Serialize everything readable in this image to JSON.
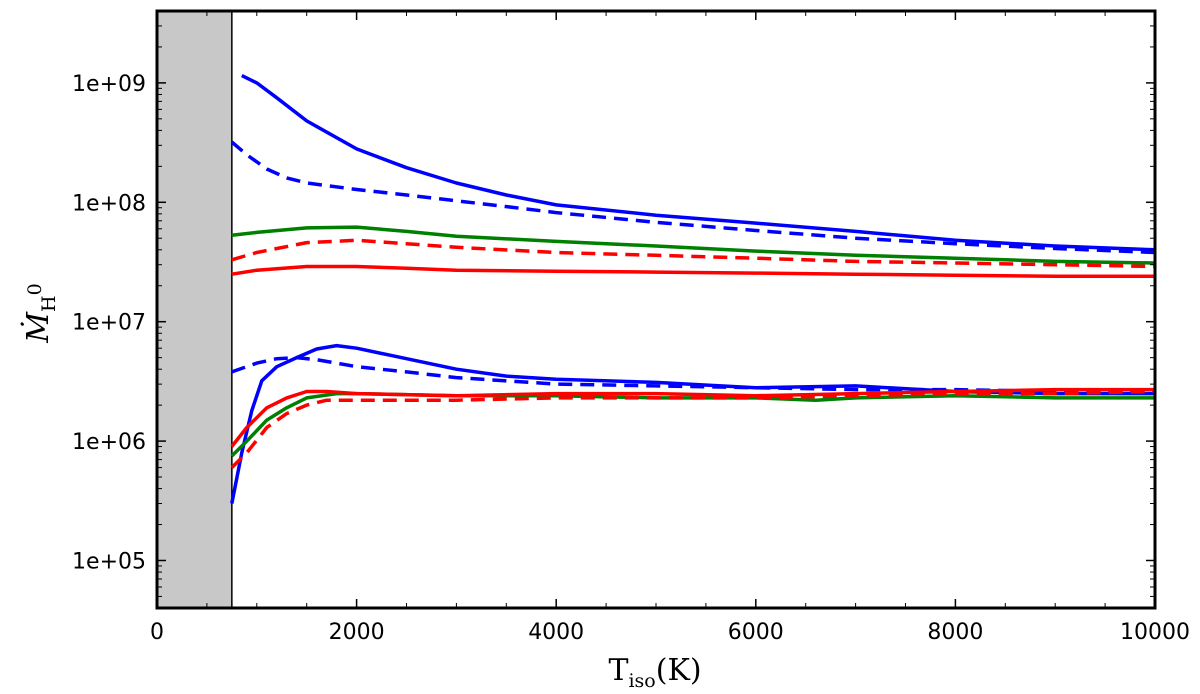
{
  "chart_data": {
    "type": "line",
    "title": "",
    "xlabel": {
      "main": "T",
      "sub": "iso",
      "unit": "(K)"
    },
    "ylabel": {
      "main": "Ṁ",
      "sub": "H",
      "sup": "0"
    },
    "xlim": [
      0,
      10000
    ],
    "ylim": [
      40000,
      4000000000
    ],
    "yscale": "log",
    "grid": false,
    "legend": "none",
    "xticks": [
      0,
      2000,
      4000,
      6000,
      8000,
      10000
    ],
    "xtick_labels": [
      "0",
      "2000",
      "4000",
      "6000",
      "8000",
      "10000"
    ],
    "yticks": [
      100000,
      1000000,
      10000000,
      100000000,
      1000000000
    ],
    "ytick_labels": [
      "1e+05",
      "1e+06",
      "1e+07",
      "1e+08",
      "1e+09"
    ],
    "shaded_region": {
      "x": [
        0,
        750
      ],
      "color": "#c8c8c8"
    },
    "series": [
      {
        "color": "#0000ff",
        "style": "solid",
        "x": [
          850,
          1000,
          1200,
          1500,
          2000,
          2500,
          3000,
          3500,
          4000,
          5000,
          6000,
          7000,
          8000,
          9000,
          10000
        ],
        "y": [
          1150000000,
          1000000000,
          750000000,
          480000000,
          280000000,
          195000000,
          145000000,
          115000000,
          95000000,
          78000000,
          67000000,
          57000000,
          48000000,
          43000000,
          40000000
        ]
      },
      {
        "color": "#0000ff",
        "style": "dashed",
        "x": [
          750,
          900,
          1100,
          1300,
          1500,
          2000,
          2500,
          3000,
          3500,
          4000,
          5000,
          6000,
          7000,
          8000,
          9000,
          10000
        ],
        "y": [
          320000000,
          250000000,
          190000000,
          160000000,
          145000000,
          128000000,
          115000000,
          103000000,
          92000000,
          82000000,
          68000000,
          58000000,
          50000000,
          45000000,
          41000000,
          38000000
        ]
      },
      {
        "color": "#008000",
        "style": "solid",
        "x": [
          750,
          1000,
          1500,
          2000,
          2500,
          3000,
          4000,
          5000,
          6000,
          7000,
          8000,
          9000,
          10000
        ],
        "y": [
          53000000,
          56000000,
          61000000,
          62000000,
          57000000,
          52000000,
          47000000,
          43000000,
          39000000,
          36000000,
          34000000,
          32000000,
          31000000
        ]
      },
      {
        "color": "#ff0000",
        "style": "dashed",
        "x": [
          750,
          1000,
          1500,
          2000,
          2500,
          3000,
          4000,
          5000,
          6000,
          7000,
          8000,
          9000,
          10000
        ],
        "y": [
          33000000,
          38000000,
          46000000,
          48000000,
          45000000,
          42000000,
          38000000,
          36000000,
          34000000,
          32000000,
          31000000,
          30000000,
          29000000
        ]
      },
      {
        "color": "#ff0000",
        "style": "solid",
        "x": [
          750,
          1000,
          1500,
          2000,
          2500,
          3000,
          4000,
          5000,
          6000,
          7000,
          8000,
          9000,
          10000
        ],
        "y": [
          25000000,
          27000000,
          29000000,
          29000000,
          28000000,
          27000000,
          26500000,
          26000000,
          25500000,
          25000000,
          24500000,
          24000000,
          24000000
        ]
      },
      {
        "color": "#0000ff",
        "style": "solid",
        "x": [
          750,
          850,
          950,
          1050,
          1200,
          1400,
          1600,
          1800,
          2000,
          2400,
          3000,
          3500,
          4000,
          5000,
          6000,
          7000,
          8000,
          9000,
          10000
        ],
        "y": [
          300000,
          800000,
          1800000,
          3200000,
          4200000,
          5000000,
          5900000,
          6300000,
          6000000,
          5100000,
          4000000,
          3500000,
          3300000,
          3100000,
          2800000,
          2900000,
          2600000,
          2500000,
          2500000
        ]
      },
      {
        "color": "#0000ff",
        "style": "dashed",
        "x": [
          750,
          1000,
          1200,
          1400,
          1600,
          1800,
          2000,
          2500,
          3000,
          4000,
          5000,
          6000,
          7000,
          8000,
          9000,
          10000
        ],
        "y": [
          3800000,
          4500000,
          4900000,
          5000000,
          4800000,
          4500000,
          4200000,
          3800000,
          3400000,
          3000000,
          2900000,
          2800000,
          2700000,
          2700000,
          2600000,
          2600000
        ]
      },
      {
        "color": "#008000",
        "style": "solid",
        "x": [
          750,
          900,
          1100,
          1300,
          1500,
          1800,
          2000,
          3000,
          4000,
          5000,
          6000,
          6600,
          7000,
          8000,
          9000,
          10000
        ],
        "y": [
          750000,
          1000000,
          1500000,
          1900000,
          2300000,
          2500000,
          2500000,
          2400000,
          2400000,
          2300000,
          2300000,
          2200000,
          2300000,
          2400000,
          2300000,
          2300000
        ]
      },
      {
        "color": "#ff0000",
        "style": "solid",
        "x": [
          750,
          900,
          1100,
          1300,
          1500,
          1700,
          2000,
          3000,
          4000,
          5000,
          6000,
          7000,
          8000,
          9000,
          10000
        ],
        "y": [
          900000,
          1300000,
          1900000,
          2300000,
          2600000,
          2600000,
          2500000,
          2400000,
          2500000,
          2500000,
          2400000,
          2500000,
          2600000,
          2700000,
          2700000
        ]
      },
      {
        "color": "#ff0000",
        "style": "dashed",
        "x": [
          750,
          900,
          1100,
          1300,
          1500,
          1700,
          2000,
          3000,
          4000,
          5000,
          6000,
          7000,
          8000,
          9000,
          10000
        ],
        "y": [
          600000,
          800000,
          1300000,
          1700000,
          2000000,
          2200000,
          2200000,
          2200000,
          2300000,
          2300000,
          2300000,
          2400000,
          2500000,
          2500000,
          2600000
        ]
      }
    ]
  }
}
